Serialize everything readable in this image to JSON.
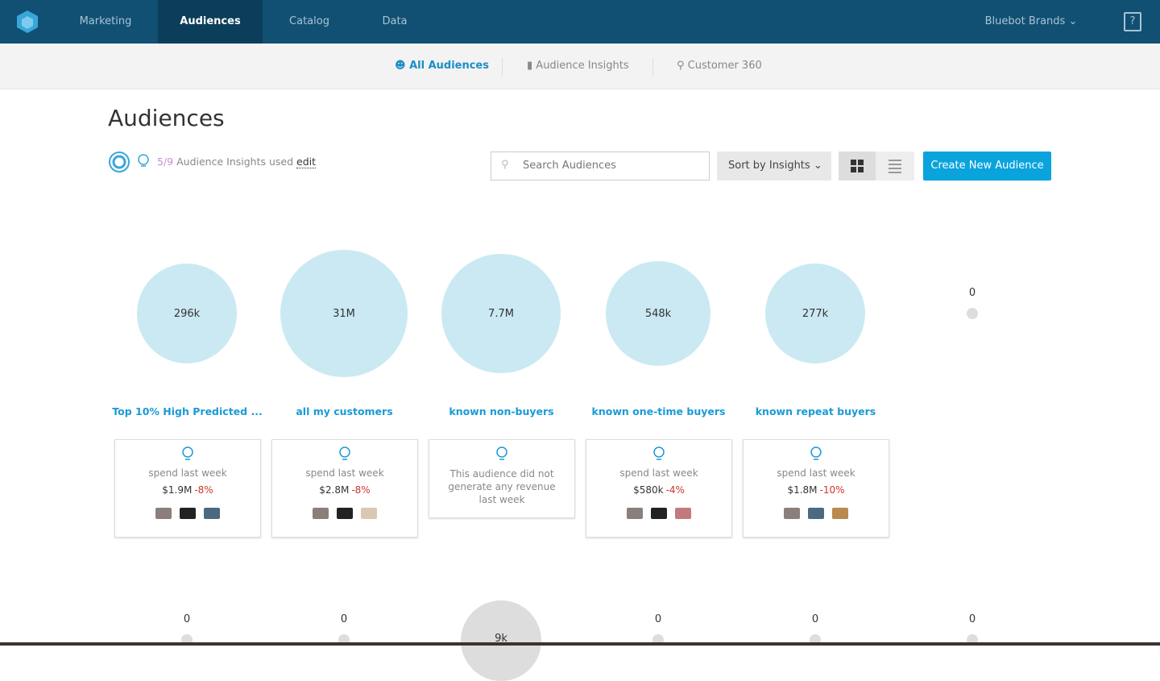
{
  "nav": {
    "items": [
      "Marketing",
      "Audiences",
      "Catalog",
      "Data"
    ],
    "account": "Bluebot Brands",
    "help": "?"
  },
  "subnav": {
    "items": [
      "All Audiences",
      "Audience Insights",
      "Customer 360"
    ]
  },
  "page": {
    "title": "Audiences",
    "insights_used": "5/9",
    "insights_label": "Audience Insights used",
    "edit": "edit",
    "search_placeholder": "Search Audiences",
    "sort": "Sort by Insights",
    "create": "Create New Audience"
  },
  "audiences": [
    {
      "size": "296k",
      "name": "Top 10% High Predicted ...",
      "metric": "spend last week",
      "amount": "$1.9M",
      "change": "-8%"
    },
    {
      "size": "31M",
      "name": "all my customers",
      "metric": "spend last week",
      "amount": "$2.8M",
      "change": "-8%"
    },
    {
      "size": "7.7M",
      "name": "known non-buyers",
      "note": "This audience did not generate any revenue last week"
    },
    {
      "size": "548k",
      "name": "known one-time buyers",
      "metric": "spend last week",
      "amount": "$580k",
      "change": "-4%"
    },
    {
      "size": "277k",
      "name": "known repeat buyers",
      "metric": "spend last week",
      "amount": "$1.8M",
      "change": "-10%"
    },
    {
      "size": "0"
    }
  ],
  "second_row": [
    "0",
    "0",
    "9k",
    "0",
    "0",
    "0"
  ]
}
